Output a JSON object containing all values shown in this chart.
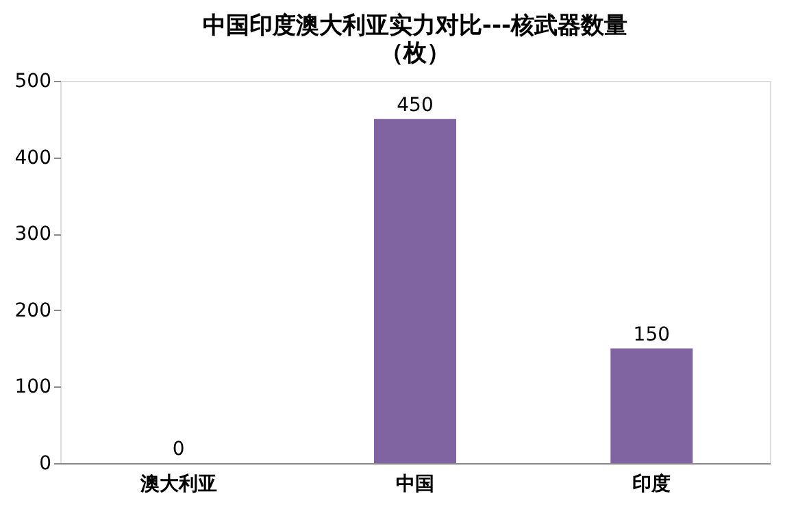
{
  "chart_data": {
    "type": "bar",
    "title": "中国印度澳大利亚实力对比---核武器数量",
    "subtitle": "（枚）",
    "categories": [
      "澳大利亚",
      "中国",
      "印度"
    ],
    "values": [
      0,
      450,
      150
    ],
    "color": "#8064a2",
    "ylim": [
      0,
      500
    ],
    "yticks": [
      0,
      100,
      200,
      300,
      400,
      500
    ],
    "grid": false,
    "data_labels": true
  }
}
